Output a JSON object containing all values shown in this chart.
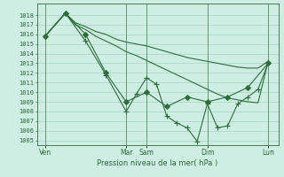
{
  "bg_color": "#ceeee4",
  "grid_color": "#aad4c8",
  "line_color": "#2d6e3a",
  "xlabel": "Pression niveau de la mer( hPa )",
  "ylim": [
    1004.5,
    1019.2
  ],
  "yticks": [
    1005,
    1006,
    1007,
    1008,
    1009,
    1010,
    1011,
    1012,
    1013,
    1014,
    1015,
    1016,
    1017,
    1018
  ],
  "xlim": [
    -0.3,
    23.5
  ],
  "x_day_labels": [
    "Ven",
    "Mar",
    "Sam",
    "Dim",
    "Lun"
  ],
  "x_day_positions": [
    0.5,
    8.5,
    10.5,
    16.5,
    22.5
  ],
  "x_vline_positions": [
    0.5,
    8.5,
    10.5,
    16.5,
    22.5
  ],
  "series": [
    {
      "x": [
        0.5,
        1.5,
        2.5,
        3.5,
        4.5,
        5.5,
        6.5,
        7.5,
        8.5,
        9.5,
        10.5,
        11.5,
        12.5,
        13.5,
        14.5,
        15.5,
        16.5,
        17.5,
        18.5,
        19.5,
        20.5,
        21.5,
        22.5
      ],
      "y": [
        1015.8,
        1017.0,
        1018.2,
        1017.2,
        1016.8,
        1016.3,
        1016.0,
        1015.5,
        1015.2,
        1015.0,
        1014.8,
        1014.5,
        1014.2,
        1013.9,
        1013.6,
        1013.4,
        1013.2,
        1013.0,
        1012.8,
        1012.6,
        1012.5,
        1012.5,
        1013.2
      ],
      "marker": null,
      "lw": 0.8
    },
    {
      "x": [
        0.5,
        1.5,
        2.5,
        3.5,
        4.5,
        5.5,
        6.5,
        7.5,
        8.5,
        9.5,
        10.5,
        11.5,
        12.5,
        13.5,
        14.5,
        15.5,
        16.5,
        17.5,
        18.5,
        19.5,
        20.5,
        21.5,
        22.5
      ],
      "y": [
        1015.8,
        1017.0,
        1018.2,
        1017.0,
        1016.5,
        1015.8,
        1015.3,
        1014.8,
        1014.2,
        1013.8,
        1013.3,
        1012.8,
        1012.3,
        1011.8,
        1011.3,
        1010.8,
        1010.3,
        1009.8,
        1009.4,
        1009.2,
        1009.0,
        1008.9,
        1013.2
      ],
      "marker": null,
      "lw": 0.8
    },
    {
      "x": [
        0.5,
        2.5,
        4.5,
        6.5,
        8.5,
        10.5,
        12.5,
        14.5,
        16.5,
        18.5,
        20.5,
        22.5
      ],
      "y": [
        1015.8,
        1018.2,
        1016.0,
        1012.0,
        1009.0,
        1010.0,
        1008.5,
        1009.5,
        1009.0,
        1009.5,
        1010.5,
        1013.0
      ],
      "marker": "D",
      "markersize": 3,
      "lw": 0.8
    },
    {
      "x": [
        0.5,
        2.5,
        4.5,
        6.5,
        8.5,
        9.5,
        10.5,
        11.5,
        12.5,
        13.5,
        14.5,
        15.5,
        16.5,
        17.5,
        18.5,
        19.5,
        20.5,
        21.5,
        22.5
      ],
      "y": [
        1015.8,
        1018.2,
        1015.3,
        1011.8,
        1008.0,
        1009.8,
        1011.5,
        1010.8,
        1007.5,
        1006.8,
        1006.3,
        1004.9,
        1008.8,
        1006.3,
        1006.5,
        1008.8,
        1009.5,
        1010.3,
        1013.0
      ],
      "marker": "+",
      "markersize": 4,
      "lw": 0.8
    }
  ]
}
